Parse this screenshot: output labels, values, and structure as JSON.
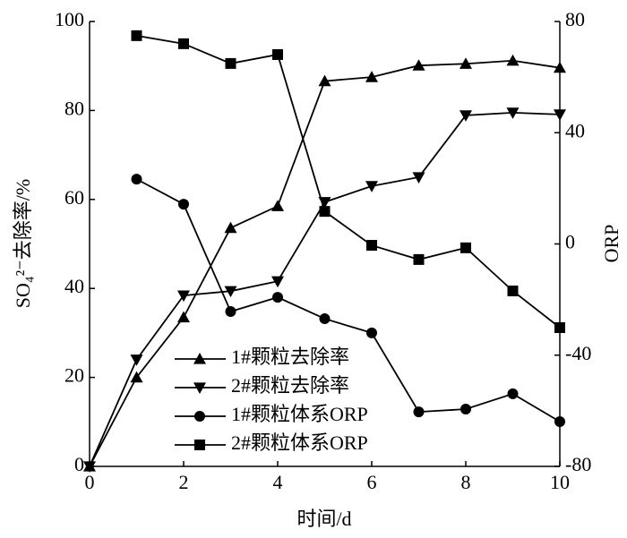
{
  "chart_data": {
    "type": "line",
    "x_label": "时间/d",
    "y_label": "SO₄²⁻去除率/%",
    "y2_label": "ORP",
    "x": [
      0,
      1,
      2,
      3,
      4,
      5,
      6,
      7,
      8,
      9,
      10
    ],
    "xlim": [
      0,
      10
    ],
    "xticks": [
      0,
      2,
      4,
      6,
      8,
      10
    ],
    "ylim": [
      0,
      100
    ],
    "yticks": [
      0,
      20,
      40,
      60,
      80,
      100
    ],
    "y2lim": [
      -80,
      80
    ],
    "y2ticks": [
      -80,
      -40,
      0,
      40,
      80
    ],
    "grid": false,
    "legend": "lower center",
    "series": [
      {
        "name": "1#颗粒去除率",
        "color": "#000000",
        "marker": "triangle-up",
        "values": [
          0,
          20,
          33.5,
          53.6,
          58.5,
          86.6,
          87.5,
          90.1,
          90.5,
          91.2,
          89.6
        ]
      },
      {
        "name": "2#颗粒去除率",
        "color": "#000000",
        "marker": "triangle-down",
        "values": [
          0,
          24,
          38.4,
          39.4,
          41.6,
          59.4,
          63,
          65,
          78.9,
          79.5,
          79.1
        ]
      },
      {
        "name": "1#颗粒体系ORP",
        "color": "#000000",
        "marker": "circle",
        "axis": "y2",
        "values": [
          null,
          23.3,
          14.3,
          -24.3,
          -19.2,
          -26.9,
          -32,
          -60.4,
          -59.4,
          -53.9,
          -63.9
        ]
      },
      {
        "name": "2#颗粒体系ORP",
        "color": "#000000",
        "marker": "square",
        "axis": "y2",
        "values": [
          null,
          74.9,
          72,
          64.9,
          68.1,
          11.7,
          -0.5,
          -5.6,
          -1.4,
          -16.9,
          -30.1
        ]
      }
    ]
  }
}
